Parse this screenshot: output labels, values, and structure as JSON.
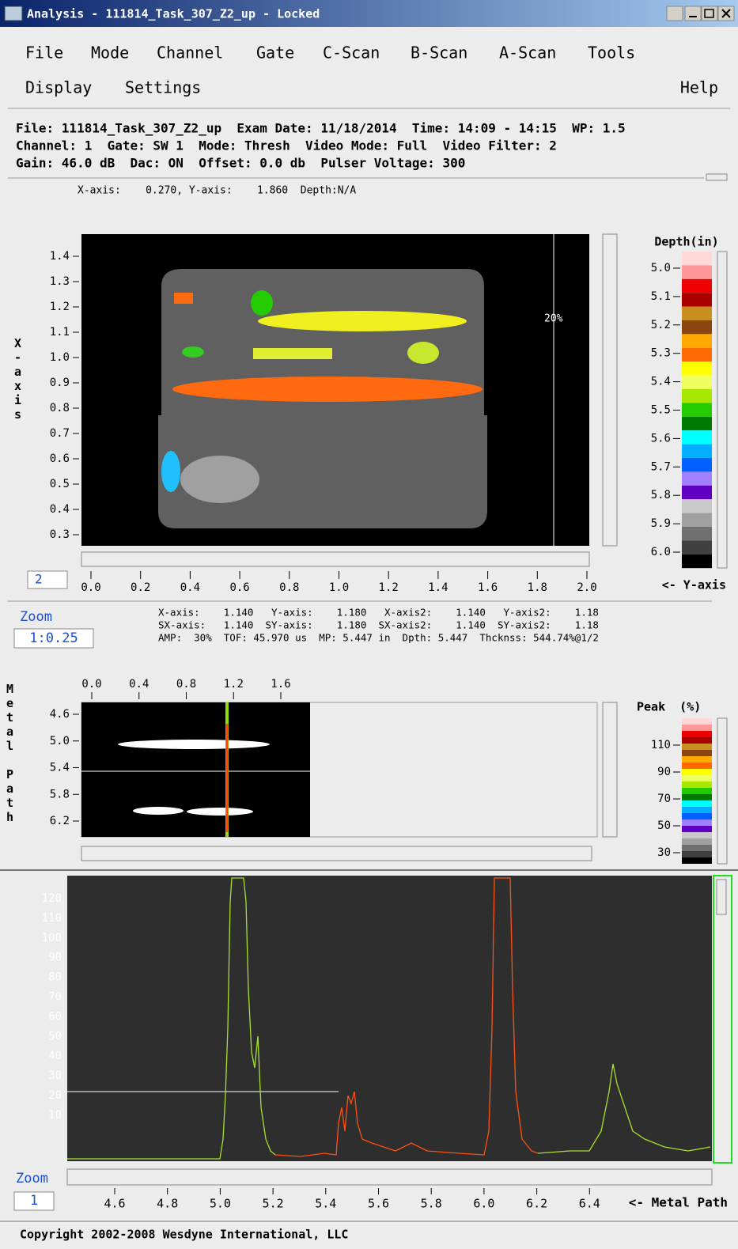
{
  "window": {
    "title": "Analysis - 111814_Task_307_Z2_up - Locked"
  },
  "menu": {
    "row1": [
      "File",
      "Mode",
      "Channel",
      "Gate",
      "C-Scan",
      "B-Scan",
      "A-Scan",
      "Tools"
    ],
    "row2": [
      "Display",
      "Settings"
    ],
    "help": "Help"
  },
  "info": [
    "File: 111814_Task_307_Z2_up  Exam Date: 11/18/2014  Time: 14:09 - 14:15  WP: 1.5",
    "Channel: 1  Gate: SW 1  Mode: Thresh  Video Mode: Full  Video Filter: 2",
    "Gain: 46.0 dB  Dac: ON  Offset: 0.0 db  Pulser Voltage: 300"
  ],
  "cscan": {
    "cursor": "X-axis:    0.270, Y-axis:    1.860  Depth:N/A",
    "axis_title": "X-axis",
    "yticks": [
      "1.4",
      "1.3",
      "1.2",
      "1.1",
      "1.0",
      "0.9",
      "0.8",
      "0.7",
      "0.6",
      "0.5",
      "0.4",
      "0.3"
    ],
    "xticks": [
      "0.0",
      "0.2",
      "0.4",
      "0.6",
      "0.8",
      "1.0",
      "1.2",
      "1.4",
      "1.6",
      "1.8",
      "2.0"
    ],
    "index_box": "2",
    "marker_label": "20%",
    "legend": {
      "title": "Depth(in)",
      "labels": [
        "5.0",
        "5.1",
        "5.2",
        "5.3",
        "5.4",
        "5.5",
        "5.6",
        "5.7",
        "5.8",
        "5.9",
        "6.0"
      ],
      "axis_note": "<- Y-axis"
    }
  },
  "zoom": {
    "label": "Zoom",
    "value": "1:0.25"
  },
  "readout": [
    "X-axis:    1.140   Y-axis:    1.180   X-axis2:    1.140   Y-axis2:    1.18",
    "SX-axis:   1.140  SY-axis:    1.180  SX-axis2:    1.140  SY-axis2:    1.18",
    "AMP:  30%  TOF: 45.970 us  MP: 5.447 in  Dpth: 5.447  Thcknss: 544.74%@1/2"
  ],
  "bscan": {
    "axis_title": "Metal Path",
    "xticks": [
      "0.0",
      "0.4",
      "0.8",
      "1.2",
      "1.6"
    ],
    "yticks": [
      "4.6",
      "5.0",
      "5.4",
      "5.8",
      "6.2"
    ],
    "legend": {
      "title": "Peak  (%)",
      "labels": [
        "110",
        "90",
        "70",
        "50",
        "30"
      ]
    }
  },
  "ascan": {
    "yticks": [
      "120",
      "110",
      "100",
      "90",
      "80",
      "70",
      "60",
      "50",
      "40",
      "30",
      "20",
      "10"
    ],
    "xticks": [
      "4.6",
      "4.8",
      "5.0",
      "5.2",
      "5.4",
      "5.6",
      "5.8",
      "6.0",
      "6.2",
      "6.4"
    ],
    "axis_note": "<- Metal Path",
    "zoom_label": "Zoom",
    "zoom_value": "1"
  },
  "footer": "Copyright 2002-2008 Wesdyne International, LLC"
}
